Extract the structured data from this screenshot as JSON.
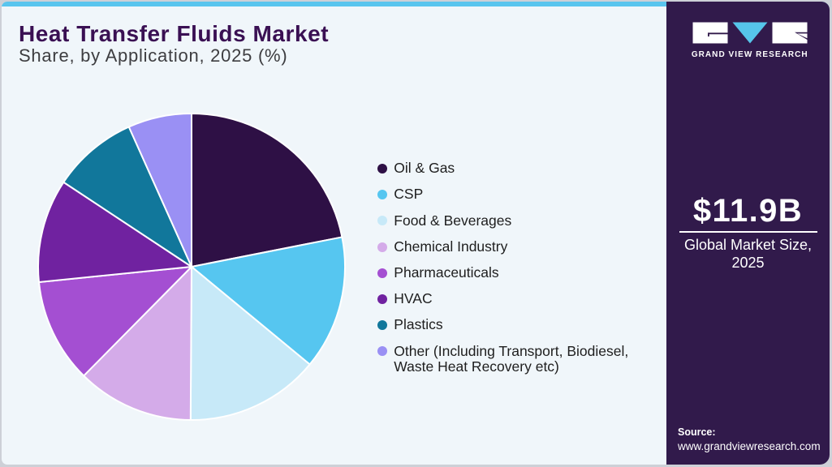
{
  "header": {
    "title": "Heat Transfer Fluids Market",
    "subtitle": "Share, by Application, 2025 (%)"
  },
  "chart_data": {
    "type": "pie",
    "title": "Heat Transfer Fluids Market Share, by Application, 2025 (%)",
    "categories": [
      "Oil & Gas",
      "CSP",
      "Food & Beverages",
      "Chemical Industry",
      "Pharmaceuticals",
      "HVAC",
      "Plastics",
      "Other (Including Transport, Biodiesel, Waste Heat Recovery etc)"
    ],
    "values": [
      21.9,
      14.1,
      14.1,
      12.3,
      11.0,
      10.9,
      9.0,
      6.7
    ],
    "unit": "percent",
    "colors": [
      "#2e1045",
      "#56c6f0",
      "#c7e9f8",
      "#d4abe9",
      "#a44fd2",
      "#7022a0",
      "#11779b",
      "#9a90f4"
    ],
    "start_angle_deg": 0,
    "direction": "clockwise",
    "legend_position": "right"
  },
  "side_panel": {
    "brand": "GRAND VIEW RESEARCH",
    "market_size": "$11.9B",
    "market_size_label": "Global Market Size, 2025",
    "source_label": "Source:",
    "source_site": "www.grandviewresearch.com"
  },
  "theme": {
    "accent_bar": "#59c5ee",
    "panel_background": "#311a4b",
    "card_background": "#f0f6fa",
    "title_color": "#3a1053"
  }
}
